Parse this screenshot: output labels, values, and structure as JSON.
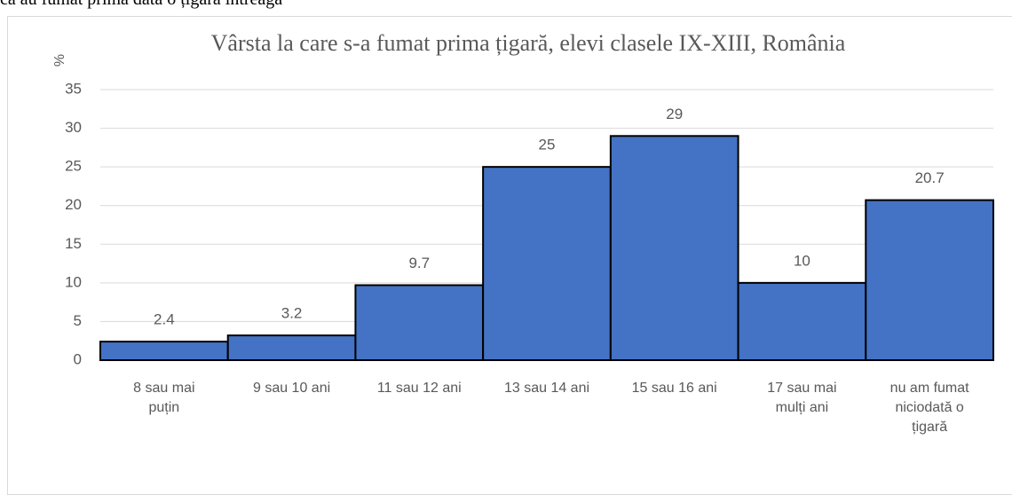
{
  "header_text": "că au fumat prima dată o țigară întreagă",
  "chart_data": {
    "type": "bar",
    "title": "Vârsta la care s-a fumat prima țigară, elevi clasele IX-XIII, România",
    "y_label": "%",
    "categories": [
      "8 sau mai puțin",
      "9 sau 10 ani",
      "11 sau 12 ani",
      "13 sau 14 ani",
      "15 sau 16 ani",
      "17 sau mai mulți ani",
      "nu am fumat niciodată o țigară"
    ],
    "values": [
      2.4,
      3.2,
      9.7,
      25,
      29,
      10,
      20.7
    ],
    "color": "#4472c4",
    "ylim": [
      0,
      35
    ],
    "yticks": [
      0,
      5,
      10,
      15,
      20,
      25,
      30,
      35
    ],
    "grid": true
  }
}
